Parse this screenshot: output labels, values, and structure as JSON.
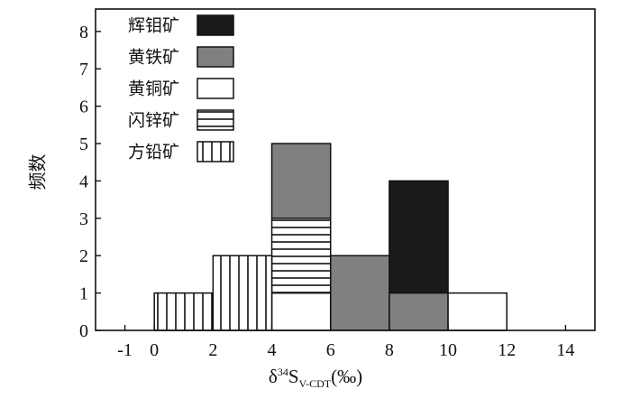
{
  "chart_data": {
    "type": "bar",
    "stacked": true,
    "bin_width": 2,
    "xlabel_parts": {
      "delta": "δ",
      "sup": "34",
      "S": "S",
      "sub": "V-CDT",
      "unit": "(‰)"
    },
    "ylabel": "频数",
    "xlim": [
      -2,
      15
    ],
    "ylim": [
      0,
      8.6
    ],
    "xticks": [
      -1,
      0,
      2,
      4,
      6,
      8,
      10,
      12,
      14
    ],
    "xtick_labels": [
      "-1",
      "0",
      "2",
      "4",
      "6",
      "8",
      "10",
      "12",
      "14"
    ],
    "yticks": [
      0,
      1,
      2,
      3,
      4,
      5,
      6,
      7,
      8
    ],
    "legend_position": "top-left",
    "series": [
      {
        "name": "辉钼矿",
        "fill": "black",
        "bins": [
          {
            "x0": 8,
            "x1": 10,
            "y0": 1,
            "y1": 4
          }
        ]
      },
      {
        "name": "黄铁矿",
        "fill": "gray",
        "bins": [
          {
            "x0": 4,
            "x1": 6,
            "y0": 3,
            "y1": 5
          },
          {
            "x0": 6,
            "x1": 8,
            "y0": 0,
            "y1": 2
          },
          {
            "x0": 8,
            "x1": 10,
            "y0": 0,
            "y1": 1
          }
        ]
      },
      {
        "name": "黄铜矿",
        "fill": "white",
        "bins": [
          {
            "x0": 4,
            "x1": 6,
            "y0": 0,
            "y1": 1
          },
          {
            "x0": 10,
            "x1": 12,
            "y0": 0,
            "y1": 1
          }
        ]
      },
      {
        "name": "闪锌矿",
        "fill": "horizontal",
        "bins": [
          {
            "x0": 4,
            "x1": 6,
            "y0": 1,
            "y1": 3
          }
        ]
      },
      {
        "name": "方铅矿",
        "fill": "vertical",
        "bins": [
          {
            "x0": 0,
            "x1": 2,
            "y0": 0,
            "y1": 1
          },
          {
            "x0": 2,
            "x1": 4,
            "y0": 0,
            "y1": 2
          }
        ]
      }
    ]
  }
}
